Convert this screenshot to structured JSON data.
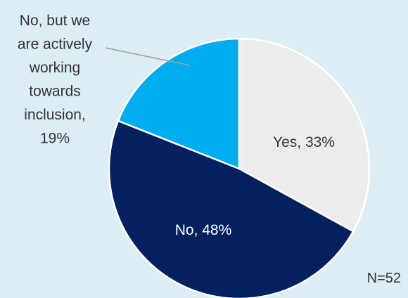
{
  "chart_data": {
    "type": "pie",
    "slices": [
      {
        "label": "Yes",
        "value": 33,
        "display": "Yes, 33%",
        "color": "#ececec",
        "label_color": "#333333"
      },
      {
        "label": "No",
        "value": 48,
        "display": "No, 48%",
        "color": "#04205e",
        "label_color": "#ffffff"
      },
      {
        "label": "No, but we are actively working towards inclusion",
        "value": 19,
        "display_lines": [
          "No, but we",
          "are actively",
          "working",
          "towards",
          "inclusion,",
          "19%"
        ],
        "color": "#00aeef",
        "label_color": "#333333"
      }
    ],
    "start": "12 o'clock",
    "direction": "clockwise",
    "background": "#dcedf4",
    "slice_border": "#ffffff",
    "note": "N=52"
  }
}
